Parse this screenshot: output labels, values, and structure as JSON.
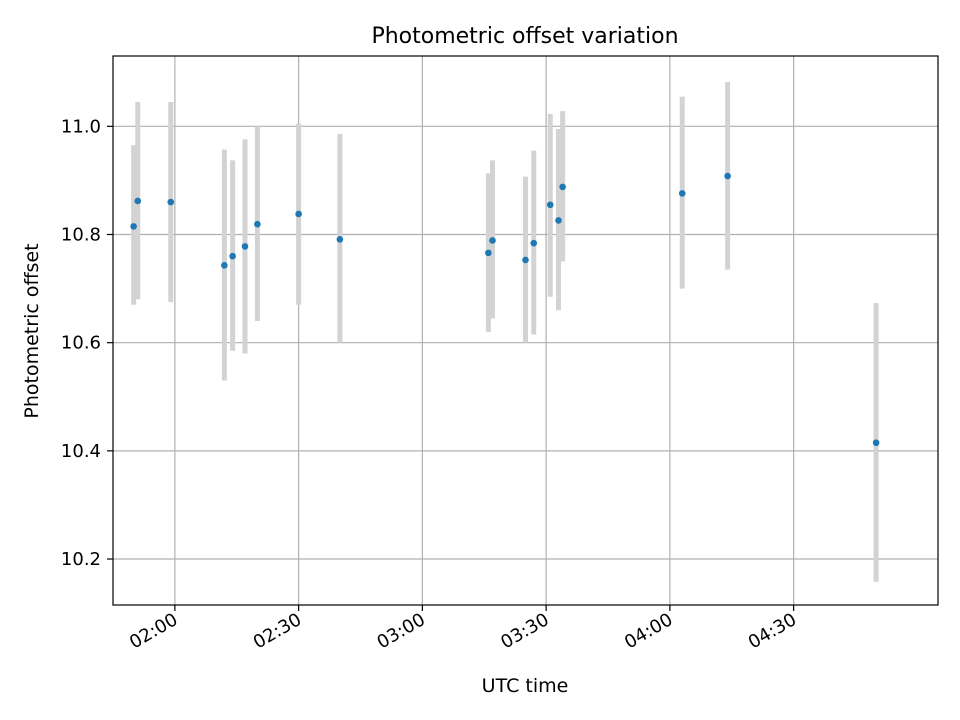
{
  "chart_data": {
    "type": "scatter",
    "title": "Photometric offset variation",
    "xlabel": "UTC time",
    "ylabel": "Photometric offset",
    "xlim": [
      "01:45",
      "05:05"
    ],
    "ylim": [
      10.115,
      11.13
    ],
    "grid": true,
    "legend": "none",
    "x_ticks": [
      "02:00",
      "02:30",
      "03:00",
      "03:30",
      "04:00",
      "04:30"
    ],
    "y_ticks": [
      "10.2",
      "10.4",
      "10.6",
      "10.8",
      "11.0"
    ],
    "series": [
      {
        "marker_color": "#1f77b4",
        "errorbar_color": "#d3d3d3",
        "points": [
          {
            "x": "01:50",
            "y": 10.815,
            "ylow": 10.67,
            "yhigh": 10.965
          },
          {
            "x": "01:51",
            "y": 10.862,
            "ylow": 10.68,
            "yhigh": 11.045
          },
          {
            "x": "01:59",
            "y": 10.86,
            "ylow": 10.675,
            "yhigh": 11.045
          },
          {
            "x": "02:12",
            "y": 10.743,
            "ylow": 10.53,
            "yhigh": 10.957
          },
          {
            "x": "02:14",
            "y": 10.76,
            "ylow": 10.585,
            "yhigh": 10.937
          },
          {
            "x": "02:17",
            "y": 10.778,
            "ylow": 10.58,
            "yhigh": 10.976
          },
          {
            "x": "02:20",
            "y": 10.819,
            "ylow": 10.64,
            "yhigh": 11.0
          },
          {
            "x": "02:30",
            "y": 10.838,
            "ylow": 10.67,
            "yhigh": 11.005
          },
          {
            "x": "02:40",
            "y": 10.791,
            "ylow": 10.6,
            "yhigh": 10.986
          },
          {
            "x": "03:16",
            "y": 10.766,
            "ylow": 10.62,
            "yhigh": 10.913
          },
          {
            "x": "03:17",
            "y": 10.789,
            "ylow": 10.645,
            "yhigh": 10.937
          },
          {
            "x": "03:25",
            "y": 10.753,
            "ylow": 10.6,
            "yhigh": 10.907
          },
          {
            "x": "03:27",
            "y": 10.784,
            "ylow": 10.615,
            "yhigh": 10.955
          },
          {
            "x": "03:31",
            "y": 10.855,
            "ylow": 10.685,
            "yhigh": 11.023
          },
          {
            "x": "03:33",
            "y": 10.826,
            "ylow": 10.66,
            "yhigh": 10.995
          },
          {
            "x": "03:34",
            "y": 10.888,
            "ylow": 10.75,
            "yhigh": 11.028
          },
          {
            "x": "04:03",
            "y": 10.876,
            "ylow": 10.7,
            "yhigh": 11.055
          },
          {
            "x": "04:14",
            "y": 10.908,
            "ylow": 10.735,
            "yhigh": 11.082
          },
          {
            "x": "04:50",
            "y": 10.415,
            "ylow": 10.158,
            "yhigh": 10.673
          }
        ]
      }
    ]
  }
}
